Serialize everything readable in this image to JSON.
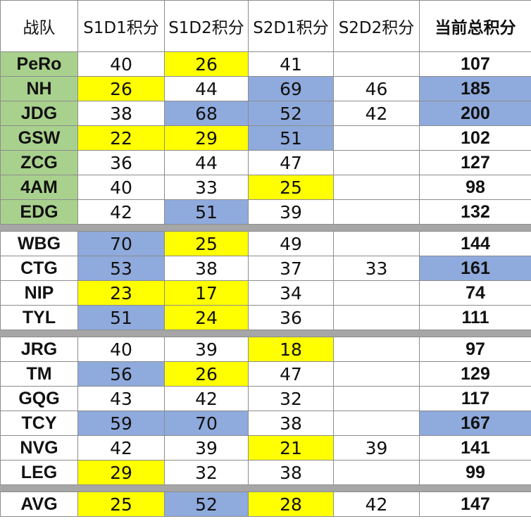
{
  "headers": {
    "team": "战队",
    "s1d1": "S1D1积分",
    "s1d2": "S1D2积分",
    "s2d1": "S2D1积分",
    "s2d2": "S2D2积分",
    "total": "当前总积分"
  },
  "colors": {
    "top_team": "#a9d18e",
    "low_score": "#ffff00",
    "high_score": "#8faadc",
    "separator": "#a6a6a6"
  },
  "groups": [
    [
      {
        "team": "PeRo",
        "team_hl": "green",
        "s1d1": "40",
        "s1d2": "26",
        "s2d1": "41",
        "s2d2": "",
        "total": "107",
        "hl": {
          "s1d2": "low"
        }
      },
      {
        "team": "NH",
        "team_hl": "green",
        "s1d1": "26",
        "s1d2": "44",
        "s2d1": "69",
        "s2d2": "46",
        "total": "185",
        "hl": {
          "s1d1": "low",
          "s2d1": "high",
          "total": "high"
        }
      },
      {
        "team": "JDG",
        "team_hl": "green",
        "s1d1": "38",
        "s1d2": "68",
        "s2d1": "52",
        "s2d2": "42",
        "total": "200",
        "hl": {
          "s1d2": "high",
          "s2d1": "high",
          "total": "high"
        }
      },
      {
        "team": "GSW",
        "team_hl": "green",
        "s1d1": "22",
        "s1d2": "29",
        "s2d1": "51",
        "s2d2": "",
        "total": "102",
        "hl": {
          "s1d1": "low",
          "s1d2": "low",
          "s2d1": "high"
        }
      },
      {
        "team": "ZCG",
        "team_hl": "green",
        "s1d1": "36",
        "s1d2": "44",
        "s2d1": "47",
        "s2d2": "",
        "total": "127",
        "hl": {}
      },
      {
        "team": "4AM",
        "team_hl": "green",
        "s1d1": "40",
        "s1d2": "33",
        "s2d1": "25",
        "s2d2": "",
        "total": "98",
        "hl": {
          "s2d1": "low"
        }
      },
      {
        "team": "EDG",
        "team_hl": "green",
        "s1d1": "42",
        "s1d2": "51",
        "s2d1": "39",
        "s2d2": "",
        "total": "132",
        "hl": {
          "s1d2": "high"
        }
      }
    ],
    [
      {
        "team": "WBG",
        "team_hl": "",
        "s1d1": "70",
        "s1d2": "25",
        "s2d1": "49",
        "s2d2": "",
        "total": "144",
        "hl": {
          "s1d1": "high",
          "s1d2": "low"
        }
      },
      {
        "team": "CTG",
        "team_hl": "",
        "s1d1": "53",
        "s1d2": "38",
        "s2d1": "37",
        "s2d2": "33",
        "total": "161",
        "hl": {
          "s1d1": "high",
          "total": "high"
        }
      },
      {
        "team": "NIP",
        "team_hl": "",
        "s1d1": "23",
        "s1d2": "17",
        "s2d1": "34",
        "s2d2": "",
        "total": "74",
        "hl": {
          "s1d1": "low",
          "s1d2": "low"
        }
      },
      {
        "team": "TYL",
        "team_hl": "",
        "s1d1": "51",
        "s1d2": "24",
        "s2d1": "36",
        "s2d2": "",
        "total": "111",
        "hl": {
          "s1d1": "high",
          "s1d2": "low"
        }
      }
    ],
    [
      {
        "team": "JRG",
        "team_hl": "",
        "s1d1": "40",
        "s1d2": "39",
        "s2d1": "18",
        "s2d2": "",
        "total": "97",
        "hl": {
          "s2d1": "low"
        }
      },
      {
        "team": "TM",
        "team_hl": "",
        "s1d1": "56",
        "s1d2": "26",
        "s2d1": "47",
        "s2d2": "",
        "total": "129",
        "hl": {
          "s1d1": "high",
          "s1d2": "low"
        }
      },
      {
        "team": "GQG",
        "team_hl": "",
        "s1d1": "43",
        "s1d2": "42",
        "s2d1": "32",
        "s2d2": "",
        "total": "117",
        "hl": {}
      },
      {
        "team": "TCY",
        "team_hl": "",
        "s1d1": "59",
        "s1d2": "70",
        "s2d1": "38",
        "s2d2": "",
        "total": "167",
        "hl": {
          "s1d1": "high",
          "s1d2": "high",
          "total": "high"
        }
      },
      {
        "team": "NVG",
        "team_hl": "",
        "s1d1": "42",
        "s1d2": "39",
        "s2d1": "21",
        "s2d2": "39",
        "total": "141",
        "hl": {
          "s2d1": "low"
        }
      },
      {
        "team": "LEG",
        "team_hl": "",
        "s1d1": "29",
        "s1d2": "32",
        "s2d1": "38",
        "s2d2": "",
        "total": "99",
        "hl": {
          "s1d1": "low"
        }
      }
    ],
    [
      {
        "team": "AVG",
        "team_hl": "",
        "s1d1": "25",
        "s1d2": "52",
        "s2d1": "28",
        "s2d2": "42",
        "total": "147",
        "hl": {
          "s1d1": "low",
          "s1d2": "high",
          "s2d1": "low"
        }
      }
    ]
  ]
}
